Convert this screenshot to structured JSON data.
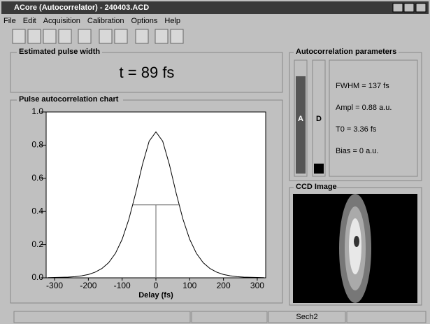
{
  "window": {
    "title": "ACore (Autocorrelator) - 240403.ACD"
  },
  "menu": [
    "File",
    "Edit",
    "Acquisition",
    "Calibration",
    "Options",
    "Help"
  ],
  "pulse_width": {
    "label": "Estimated pulse width",
    "text": "t = 89 fs"
  },
  "parameters": {
    "label": "Autocorrelation parameters",
    "bars": [
      {
        "name": "A",
        "value": 0.88,
        "color": "#555555"
      },
      {
        "name": "D",
        "value": 0.09,
        "color": "#000000"
      }
    ],
    "lines": [
      "FWHM = 137 fs",
      "Ampl = 0.88 a.u.",
      "T0 = 3.36 fs",
      "Bias = 0 a.u."
    ]
  },
  "ccd": {
    "label": "CCD Image"
  },
  "status": "Sech2",
  "chart_data": {
    "type": "line",
    "title": "Pulse autocorrelation chart",
    "x_label": "Delay (fs)",
    "x": [
      -320,
      -300,
      -280,
      -260,
      -240,
      -220,
      -200,
      -180,
      -160,
      -140,
      -120,
      -100,
      -80,
      -60,
      -40,
      -20,
      0,
      20,
      40,
      60,
      80,
      100,
      120,
      140,
      160,
      180,
      200,
      220,
      240,
      260,
      280,
      300,
      320
    ],
    "values": [
      0.001,
      0.002,
      0.003,
      0.004,
      0.007,
      0.012,
      0.02,
      0.034,
      0.056,
      0.091,
      0.147,
      0.232,
      0.354,
      0.51,
      0.682,
      0.824,
      0.88,
      0.824,
      0.682,
      0.51,
      0.354,
      0.232,
      0.147,
      0.091,
      0.056,
      0.034,
      0.02,
      0.012,
      0.007,
      0.004,
      0.003,
      0.002,
      0.001
    ],
    "color": "#000000",
    "fwhm_line": {
      "x": [
        -68.5,
        68.5
      ],
      "y": 0.44,
      "center": 0
    },
    "xlim": [
      -325,
      325
    ],
    "ylim": [
      0,
      1.0
    ],
    "xticks": [
      -300,
      -200,
      -100,
      0,
      100,
      200,
      300
    ],
    "yticks": [
      {
        "value": 0,
        "label": "0.0"
      },
      {
        "value": 0.2,
        "label": "0.2"
      },
      {
        "value": 0.4,
        "label": "0.4"
      },
      {
        "value": 0.6,
        "label": "0.6"
      },
      {
        "value": 0.8,
        "label": "0.8"
      },
      {
        "value": 1.0,
        "label": "1.0"
      }
    ],
    "grid": false
  }
}
